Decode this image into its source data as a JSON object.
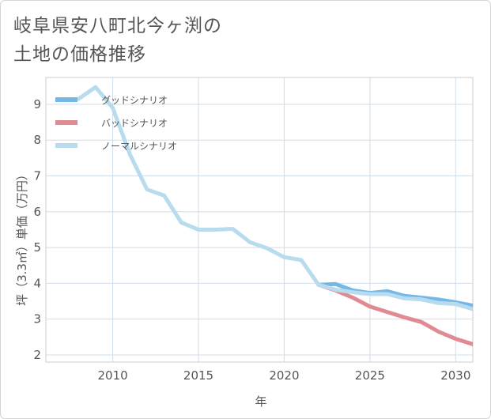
{
  "title": {
    "line1": "岐阜県安八町北今ヶ渕の",
    "line2": "土地の価格推移"
  },
  "chart_data": {
    "type": "line",
    "xlabel": "年",
    "ylabel": "坪（3.3㎡）単価（万円）",
    "xlim": [
      2006.1,
      2031
    ],
    "ylim": [
      1.8,
      9.75
    ],
    "xticks": [
      2010,
      2015,
      2020,
      2025,
      2030
    ],
    "yticks": [
      2,
      3,
      4,
      5,
      6,
      7,
      8,
      9
    ],
    "grid": true,
    "legend_position": "top-left",
    "series": [
      {
        "name": "グッドシナリオ",
        "color": "#74b8e8",
        "x": [
          2022,
          2023,
          2024,
          2025,
          2026,
          2027,
          2028,
          2029,
          2030,
          2031
        ],
        "y": [
          3.96,
          3.98,
          3.8,
          3.73,
          3.78,
          3.65,
          3.6,
          3.55,
          3.47,
          3.38
        ]
      },
      {
        "name": "バッドシナリオ",
        "color": "#e08a93",
        "x": [
          2022,
          2023,
          2024,
          2025,
          2026,
          2027,
          2028,
          2029,
          2030,
          2031
        ],
        "y": [
          3.96,
          3.8,
          3.6,
          3.35,
          3.2,
          3.05,
          2.92,
          2.65,
          2.45,
          2.3
        ]
      },
      {
        "name": "ノーマルシナリオ",
        "color": "#b8dced",
        "x": [
          2008,
          2009,
          2010,
          2011,
          2012,
          2013,
          2014,
          2015,
          2016,
          2017,
          2018,
          2019,
          2020,
          2021,
          2022,
          2023,
          2024,
          2025,
          2026,
          2027,
          2028,
          2029,
          2030,
          2031
        ],
        "y": [
          9.15,
          9.48,
          8.9,
          7.6,
          6.62,
          6.45,
          5.7,
          5.5,
          5.5,
          5.52,
          5.15,
          4.98,
          4.73,
          4.65,
          3.96,
          3.82,
          3.75,
          3.7,
          3.7,
          3.58,
          3.55,
          3.45,
          3.42,
          3.28
        ]
      }
    ]
  }
}
